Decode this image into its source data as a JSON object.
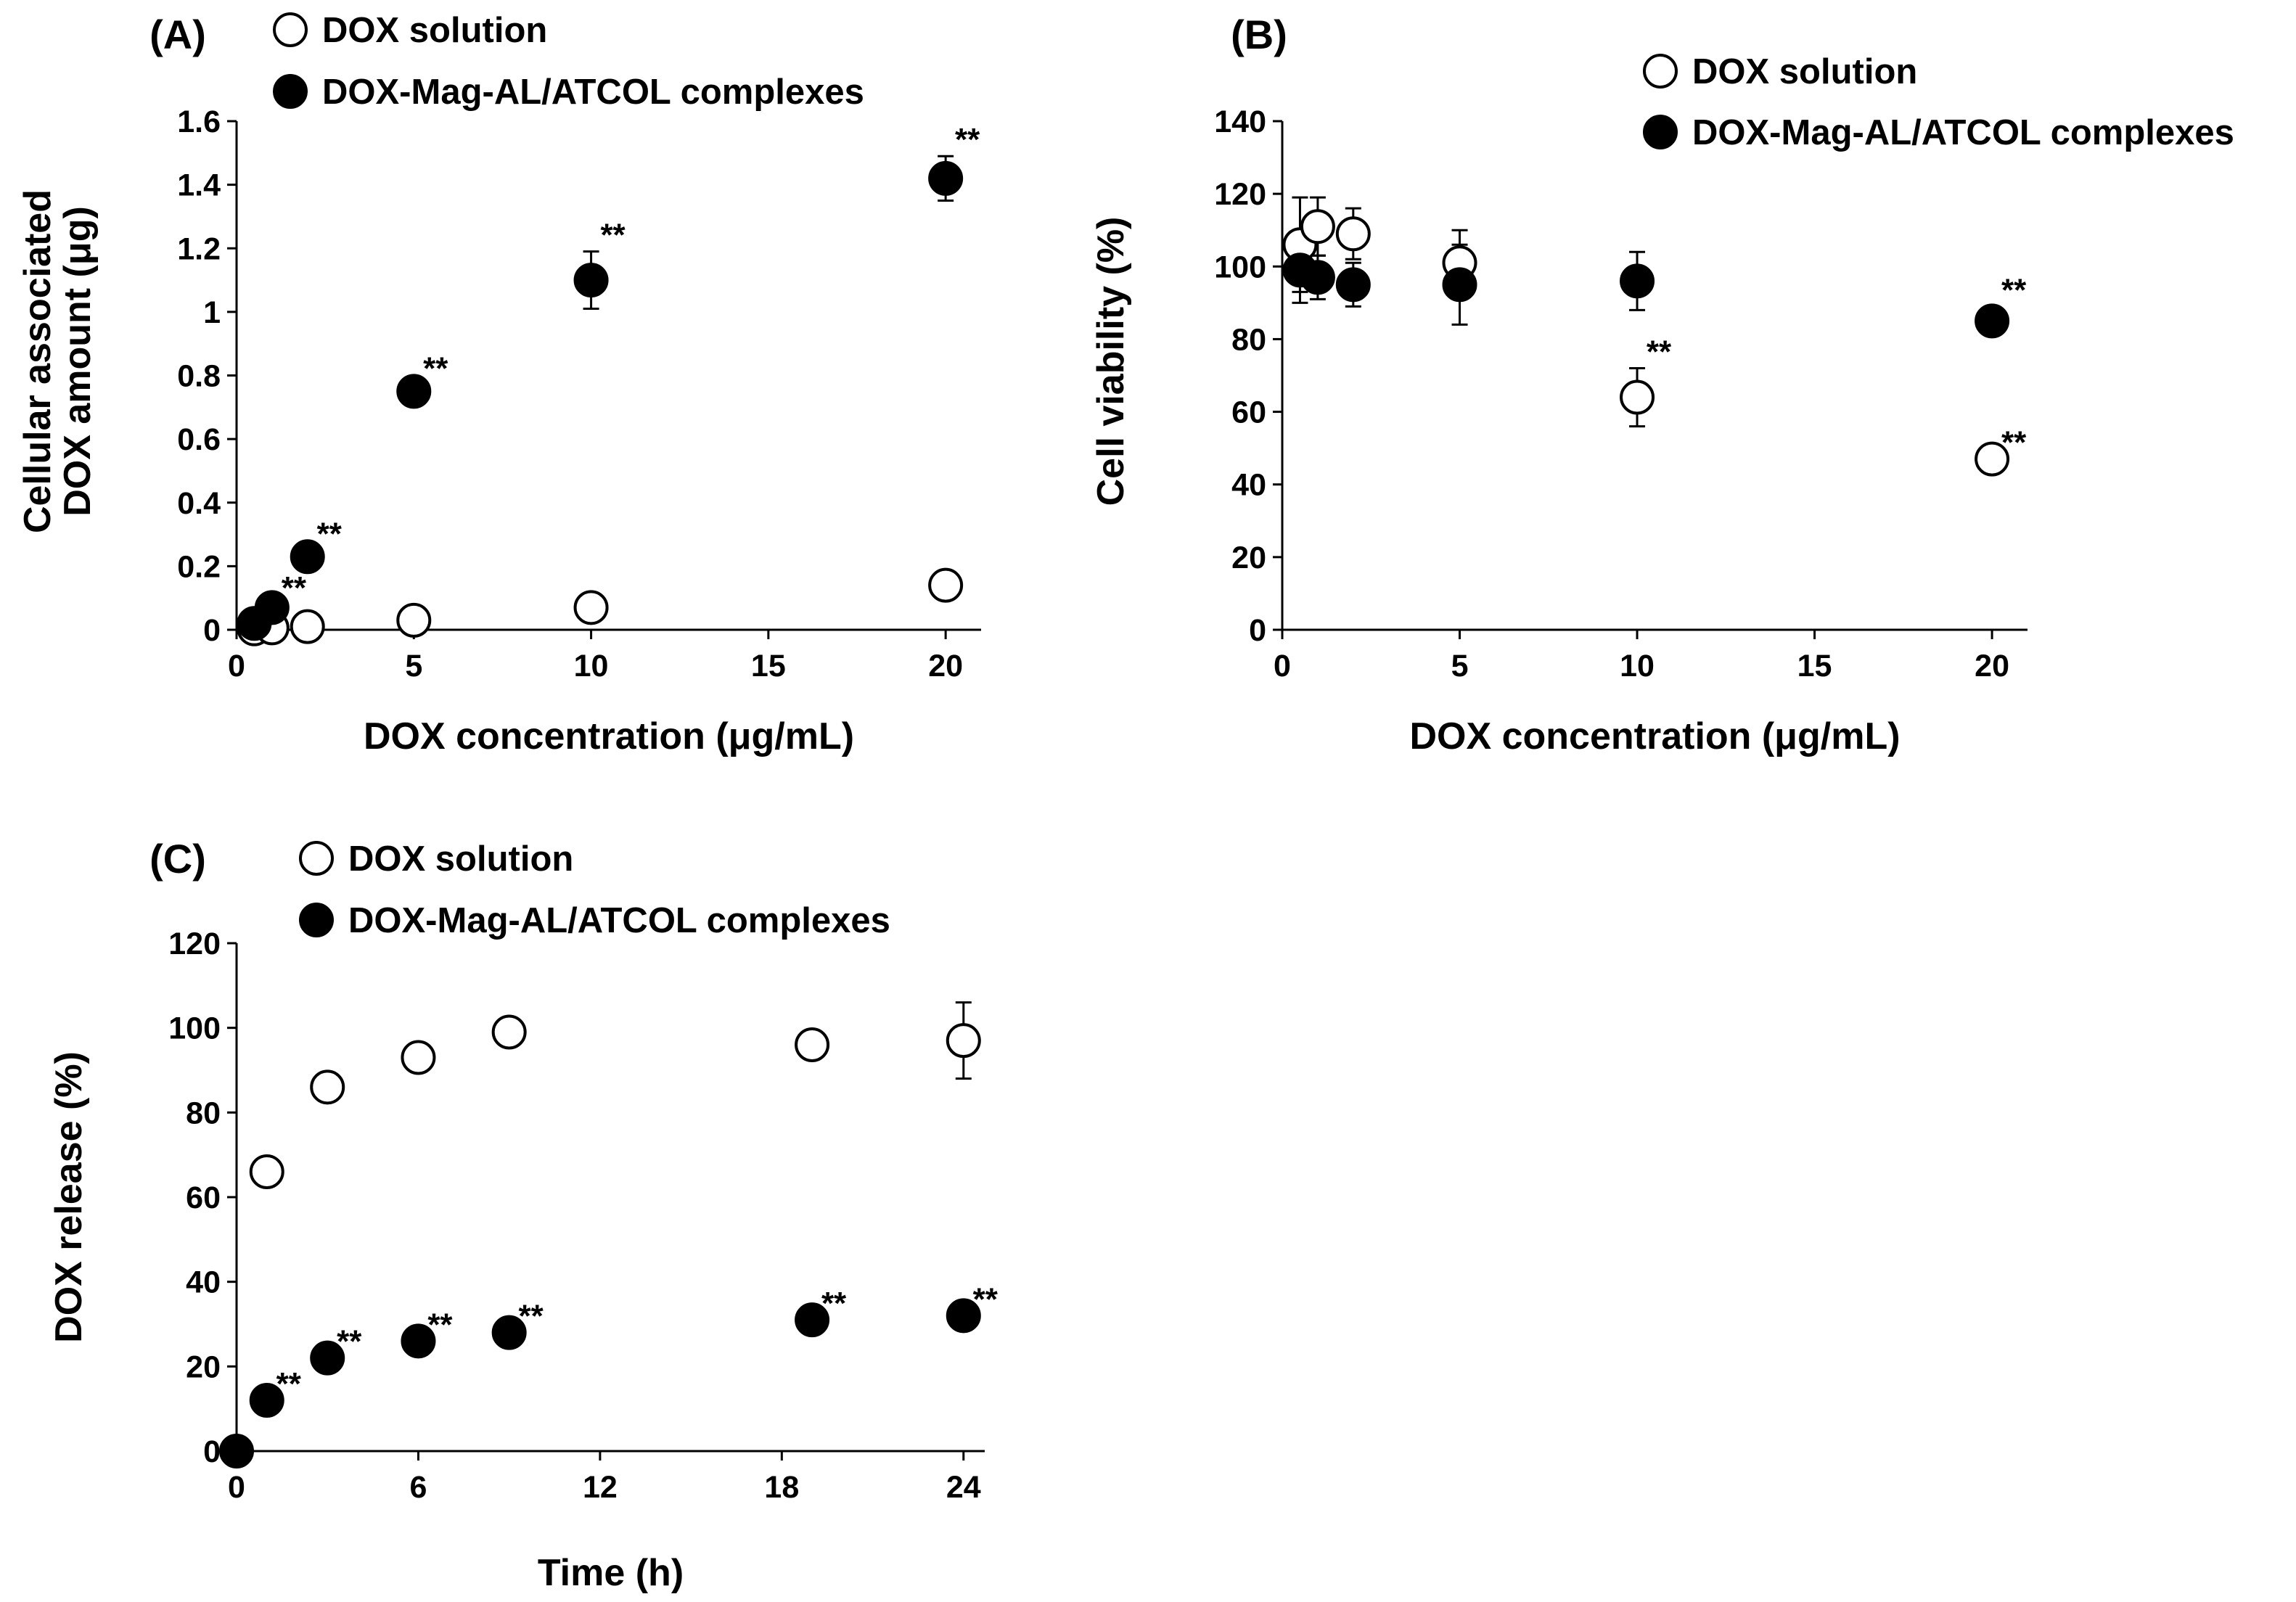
{
  "chart_data": [
    {
      "id": "A",
      "panel_label": "(A)",
      "type": "scatter",
      "xlabel": "DOX concentration (μg/mL)",
      "ylabel": [
        "Cellular associated",
        "DOX amount (μg)"
      ],
      "xlim": [
        0,
        21
      ],
      "ylim": [
        0,
        1.6
      ],
      "xticks": [
        0,
        5,
        10,
        15,
        20
      ],
      "xtick_labels": [
        "0",
        "5",
        "10",
        "15",
        "20"
      ],
      "yticks": [
        0,
        0.2,
        0.4,
        0.6,
        0.8,
        1.0,
        1.2,
        1.4,
        1.6
      ],
      "ytick_labels": [
        "0",
        "0.2",
        "0.4",
        "0.6",
        "0.8",
        "1",
        "1.2",
        "1.4",
        "1.6"
      ],
      "grid": false,
      "legend_position": "top",
      "series": [
        {
          "name": "DOX solution",
          "marker": "open-circle",
          "x": [
            0.5,
            1,
            2,
            5,
            10,
            20
          ],
          "y": [
            0.003,
            0.006,
            0.01,
            0.03,
            0.07,
            0.14
          ],
          "err": [
            0,
            0,
            0,
            0,
            0,
            0
          ],
          "sig": [
            "",
            "",
            "",
            "",
            "",
            ""
          ]
        },
        {
          "name": "DOX-Mag-AL/ATCOL complexes",
          "marker": "filled-circle",
          "x": [
            0.5,
            1,
            2,
            5,
            10,
            20
          ],
          "y": [
            0.02,
            0.07,
            0.23,
            0.75,
            1.1,
            1.42
          ],
          "err": [
            0,
            0.01,
            0.02,
            0.02,
            0.09,
            0.07
          ],
          "sig": [
            "",
            "**",
            "**",
            "**",
            "**",
            "**"
          ]
        }
      ]
    },
    {
      "id": "B",
      "panel_label": "(B)",
      "type": "scatter",
      "xlabel": "DOX concentration (μg/mL)",
      "ylabel": [
        "Cell viability (%)"
      ],
      "xlim": [
        0,
        21
      ],
      "ylim": [
        0,
        140
      ],
      "xticks": [
        0,
        5,
        10,
        15,
        20
      ],
      "xtick_labels": [
        "0",
        "5",
        "10",
        "15",
        "20"
      ],
      "yticks": [
        0,
        20,
        40,
        60,
        80,
        100,
        120,
        140
      ],
      "ytick_labels": [
        "0",
        "20",
        "40",
        "60",
        "80",
        "100",
        "120",
        "140"
      ],
      "grid": false,
      "legend_position": "top-right",
      "series": [
        {
          "name": "DOX solution",
          "marker": "open-circle",
          "x": [
            0.5,
            1,
            2,
            5,
            10,
            20
          ],
          "y": [
            106,
            111,
            109,
            101,
            64,
            47
          ],
          "err": [
            13,
            8,
            7,
            9,
            8,
            0
          ],
          "sig": [
            "",
            "",
            "",
            "",
            "**",
            "**"
          ]
        },
        {
          "name": "DOX-Mag-AL/ATCOL complexes",
          "marker": "filled-circle",
          "x": [
            0.5,
            1,
            2,
            5,
            10,
            20
          ],
          "y": [
            99,
            97,
            95,
            95,
            96,
            85
          ],
          "err": [
            9,
            6,
            6,
            11,
            8,
            4
          ],
          "sig": [
            "",
            "",
            "",
            "",
            "",
            "**"
          ]
        }
      ]
    },
    {
      "id": "C",
      "panel_label": "(C)",
      "type": "scatter",
      "xlabel": "Time (h)",
      "ylabel": [
        "DOX release (%)"
      ],
      "xlim": [
        0,
        24.7
      ],
      "ylim": [
        0,
        120
      ],
      "xticks": [
        0,
        6,
        12,
        18,
        24
      ],
      "xtick_labels": [
        "0",
        "6",
        "12",
        "18",
        "24"
      ],
      "yticks": [
        0,
        20,
        40,
        60,
        80,
        100,
        120
      ],
      "ytick_labels": [
        "0",
        "20",
        "40",
        "60",
        "80",
        "100",
        "120"
      ],
      "grid": false,
      "legend_position": "top",
      "series": [
        {
          "name": "DOX solution",
          "marker": "open-circle",
          "x": [
            1,
            3,
            6,
            9,
            19,
            24
          ],
          "y": [
            66,
            86,
            93,
            99,
            96,
            97
          ],
          "err": [
            0,
            0,
            0,
            0,
            0,
            9
          ],
          "sig": [
            "",
            "",
            "",
            "",
            "",
            ""
          ]
        },
        {
          "name": "DOX-Mag-AL/ATCOL complexes",
          "marker": "filled-circle",
          "x": [
            0,
            1,
            3,
            6,
            9,
            19,
            24
          ],
          "y": [
            0,
            12,
            22,
            26,
            28,
            31,
            32
          ],
          "err": [
            0,
            0,
            0,
            0,
            0,
            0,
            0
          ],
          "sig": [
            "",
            "**",
            "**",
            "**",
            "**",
            "**",
            "**"
          ]
        }
      ]
    }
  ]
}
